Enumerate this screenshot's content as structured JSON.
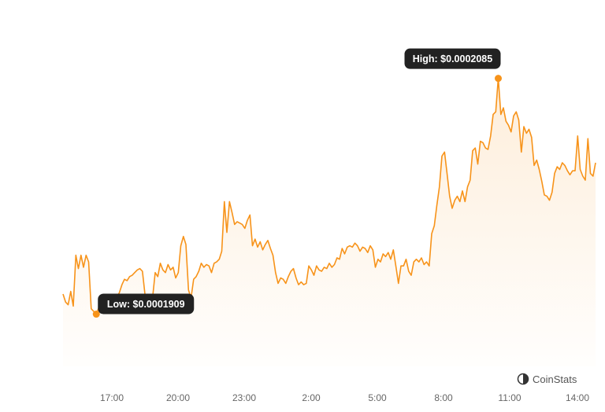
{
  "chart_data": {
    "type": "area",
    "x_ticks": [
      "17:00",
      "20:00",
      "23:00",
      "2:00",
      "5:00",
      "8:00",
      "11:00",
      "14:00"
    ],
    "ylim": [
      0.000187,
      0.000212
    ],
    "series": [
      {
        "color": "#f7931a",
        "values": [
          0.0001924,
          0.0001918,
          0.0001916,
          0.0001926,
          0.0001915,
          0.0001953,
          0.0001943,
          0.0001953,
          0.0001944,
          0.0001953,
          0.0001948,
          0.0001913,
          0.0001911,
          0.0001909,
          0.0001914,
          0.0001913,
          0.0001922,
          0.0001917,
          0.0001917,
          0.000191,
          0.000191,
          0.0001922,
          0.0001925,
          0.0001931,
          0.0001935,
          0.0001934,
          0.0001937,
          0.0001938,
          0.000194,
          0.0001942,
          0.0001943,
          0.0001941,
          0.0001924,
          0.0001923,
          0.0001921,
          0.0001922,
          0.000194,
          0.0001937,
          0.0001947,
          0.0001942,
          0.000194,
          0.0001946,
          0.0001942,
          0.0001944,
          0.0001936,
          0.000194,
          0.000196,
          0.0001967,
          0.0001961,
          0.0001927,
          0.0001921,
          0.0001935,
          0.0001937,
          0.0001941,
          0.0001947,
          0.0001944,
          0.0001946,
          0.0001945,
          0.000194,
          0.0001947,
          0.0001948,
          0.000195,
          0.0001956,
          0.0001993,
          0.000197,
          0.0001993,
          0.0001985,
          0.0001976,
          0.0001978,
          0.0001977,
          0.0001976,
          0.0001973,
          0.0001979,
          0.0001983,
          0.000196,
          0.0001965,
          0.0001959,
          0.0001963,
          0.0001957,
          0.0001961,
          0.0001964,
          0.0001958,
          0.0001953,
          0.000194,
          0.0001932,
          0.0001936,
          0.0001935,
          0.0001932,
          0.0001937,
          0.0001941,
          0.0001943,
          0.0001936,
          0.0001931,
          0.0001933,
          0.0001931,
          0.0001932,
          0.0001945,
          0.0001942,
          0.0001938,
          0.0001945,
          0.0001942,
          0.0001941,
          0.0001944,
          0.0001943,
          0.0001947,
          0.0001944,
          0.0001946,
          0.0001951,
          0.000195,
          0.0001958,
          0.0001954,
          0.0001959,
          0.000196,
          0.0001959,
          0.0001962,
          0.000196,
          0.0001956,
          0.0001959,
          0.0001958,
          0.0001955,
          0.000196,
          0.0001957,
          0.0001944,
          0.000195,
          0.0001948,
          0.0001954,
          0.0001952,
          0.0001955,
          0.000195,
          0.0001957,
          0.0001945,
          0.0001932,
          0.0001945,
          0.0001945,
          0.000195,
          0.0001941,
          0.0001938,
          0.0001948,
          0.000195,
          0.0001948,
          0.0001951,
          0.0001946,
          0.0001948,
          0.0001945,
          0.0001969,
          0.0001975,
          0.000199,
          0.0002004,
          0.0002027,
          0.000203,
          0.0002014,
          0.0001997,
          0.0001988,
          0.0001994,
          0.0001997,
          0.0001993,
          0.0002001,
          0.0001993,
          0.0002004,
          0.0002009,
          0.0002031,
          0.0002033,
          0.0002021,
          0.0002038,
          0.0002037,
          0.0002033,
          0.0002032,
          0.0002042,
          0.0002058,
          0.000206,
          0.0002085,
          0.0002058,
          0.0002063,
          0.0002053,
          0.000205,
          0.0002045,
          0.0002057,
          0.000206,
          0.0002054,
          0.000203,
          0.0002049,
          0.0002044,
          0.0002047,
          0.0002041,
          0.000202,
          0.0002024,
          0.0002017,
          0.0002008,
          0.0001998,
          0.0001997,
          0.0001994,
          0.0002,
          0.0002014,
          0.0002019,
          0.0002017,
          0.0002022,
          0.000202,
          0.0002016,
          0.0002013,
          0.0002016,
          0.0002016,
          0.0002042,
          0.0002017,
          0.0002012,
          0.0002009,
          0.000204,
          0.0002014,
          0.0002012,
          0.0002022
        ]
      }
    ],
    "annotations": [
      {
        "label": "High: $0.0002085",
        "index": 170
      },
      {
        "label": "Low: $0.0001909",
        "index": 13
      }
    ],
    "grid": false,
    "legend": "none"
  },
  "brand": {
    "name": "CoinStats",
    "icon": "coinstats-logo-icon"
  }
}
